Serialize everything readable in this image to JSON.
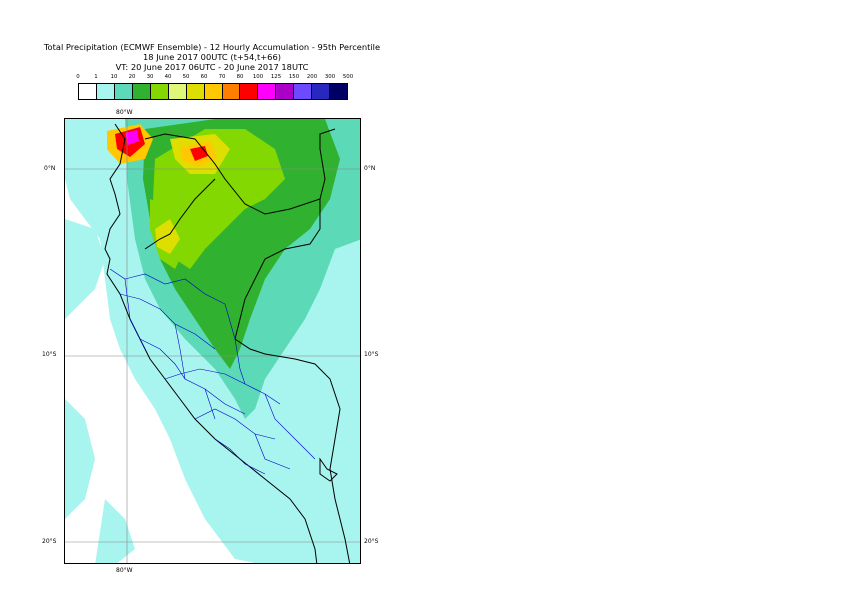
{
  "title": {
    "line1": "Total Precipitation (ECMWF Ensemble) - 12 Hourly Accumulation - 95th Percentile",
    "line2": "18 June 2017 00UTC (t+54,t+66)",
    "line3": "VT: 20 June 2017 06UTC - 20 June 2017 18UTC"
  },
  "scale": {
    "ticks": [
      "0",
      "1",
      "10",
      "20",
      "30",
      "40",
      "50",
      "60",
      "70",
      "80",
      "100",
      "125",
      "150",
      "200",
      "300",
      "500"
    ],
    "colors": [
      "#ffffff",
      "#a8f4ee",
      "#5cd9b6",
      "#30b230",
      "#82d800",
      "#e0f87a",
      "#dede00",
      "#ffc800",
      "#ff7d00",
      "#ff0000",
      "#ff00ff",
      "#aa00c8",
      "#6e4aff",
      "#2828c0",
      "#000064"
    ]
  },
  "map": {
    "lon_labels": [
      "80°W",
      "80°W"
    ],
    "lat_labels": {
      "left": [
        "0°N",
        "10°S",
        "20°S"
      ],
      "right": [
        "0°N",
        "10°S",
        "20°S"
      ]
    }
  }
}
